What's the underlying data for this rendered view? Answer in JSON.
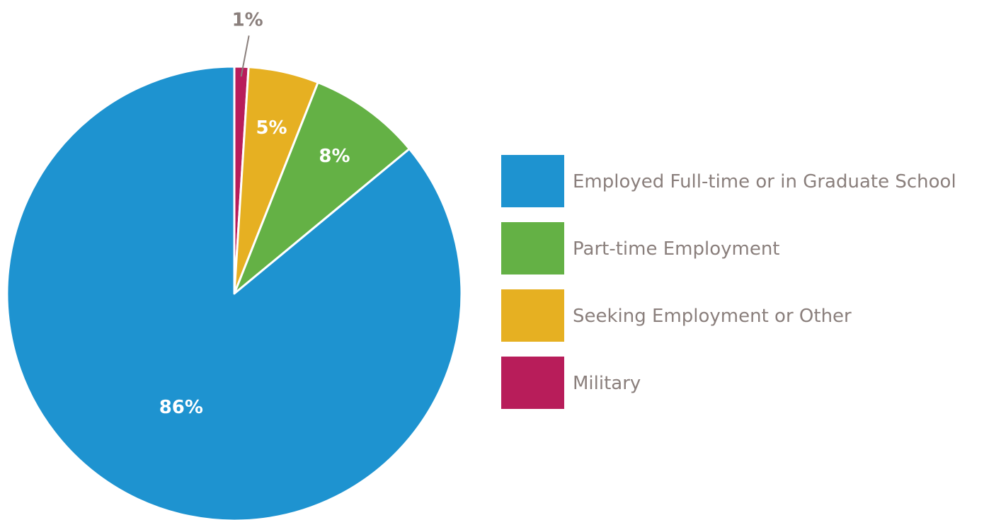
{
  "chart_data": {
    "type": "pie",
    "title": "",
    "series": [
      {
        "name": "Employed Full-time or in Graduate School",
        "value": 86,
        "label": "86%",
        "color": "#1e93d0"
      },
      {
        "name": "Part-time Employment",
        "value": 8,
        "label": "8%",
        "color": "#64b145"
      },
      {
        "name": "Seeking Employment or Other",
        "value": 5,
        "label": "5%",
        "color": "#e6b022"
      },
      {
        "name": "Military",
        "value": 1,
        "label": "1%",
        "color": "#b81d5a"
      }
    ],
    "legend_position": "right"
  }
}
